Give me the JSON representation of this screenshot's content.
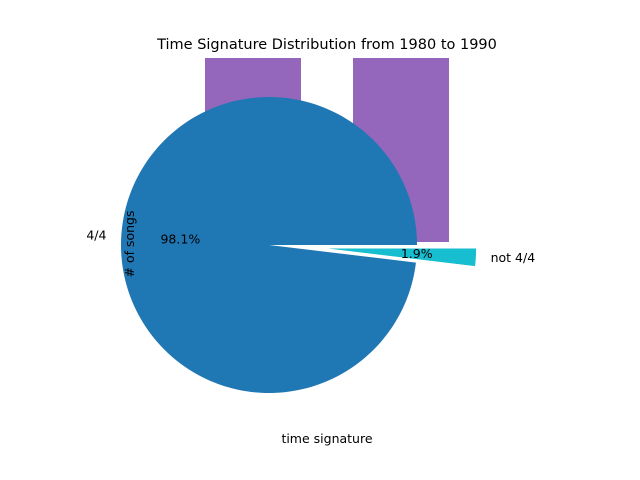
{
  "chart_data": [
    {
      "type": "bar",
      "title": "Time Signature Distribution from 1980 to 1990",
      "xlabel": "time signature",
      "ylabel": "# of songs",
      "categories": [
        "",
        ""
      ],
      "values": [
        1.0,
        1.0
      ],
      "ylim": [
        0,
        1.0
      ],
      "color": "#9467bd",
      "grid": false,
      "note": "bars are partially covered by the pie drawn on top; tops clipped by axes"
    },
    {
      "type": "pie",
      "labels": [
        "4/4",
        "not 4/4"
      ],
      "values": [
        98.1,
        1.9
      ],
      "autopct": [
        "98.1%",
        "1.9%"
      ],
      "explode": [
        0,
        0.4
      ],
      "colors": [
        "#1f77b4",
        "#17becf"
      ],
      "startangle_deg": 0
    }
  ]
}
